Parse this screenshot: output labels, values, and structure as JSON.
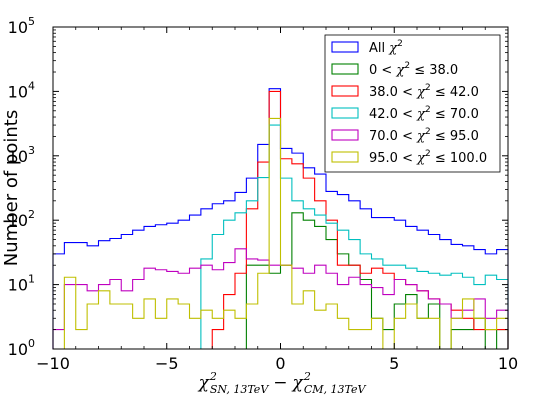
{
  "chart_data": {
    "type": "histogram",
    "ylabel": "Number of points",
    "xlabel": {
      "text1": "χ",
      "sup1": "2",
      "sub1": "SN, 13TeV",
      "minus": "−",
      "text2": "χ",
      "sup2": "2",
      "sub2": "CM, 13TeV"
    },
    "xlim": [
      -10,
      10
    ],
    "ylim": [
      1,
      100000
    ],
    "yscale": "log",
    "x_ticks": [
      "−10",
      "−5",
      "0",
      "5",
      "10"
    ],
    "x_tick_values": [
      -10,
      -5,
      0,
      5,
      10
    ],
    "y_ticks": [
      {
        "base": "10",
        "exp": "0"
      },
      {
        "base": "10",
        "exp": "1"
      },
      {
        "base": "10",
        "exp": "2"
      },
      {
        "base": "10",
        "exp": "3"
      },
      {
        "base": "10",
        "exp": "4"
      },
      {
        "base": "10",
        "exp": "5"
      }
    ],
    "legend_position": "top-right",
    "bin_width": 0.5,
    "bin_start": -10,
    "series": [
      {
        "name": "All χ²",
        "legend": {
          "pre": "All ",
          "chi": "χ",
          "sup": "2",
          "post": ""
        },
        "color": "#0000ff",
        "values": [
          30,
          45,
          45,
          40,
          48,
          52,
          60,
          70,
          80,
          85,
          90,
          100,
          120,
          150,
          180,
          200,
          270,
          450,
          1500,
          11000,
          1300,
          1100,
          650,
          520,
          280,
          250,
          200,
          150,
          110,
          110,
          100,
          80,
          70,
          60,
          50,
          42,
          40,
          35,
          30,
          35
        ]
      },
      {
        "name": "0 < χ² ≤ 38.0",
        "legend": {
          "pre": "0 < ",
          "chi": "χ",
          "sup": "2",
          "post": " ≤ 38.0"
        },
        "color": "#008000",
        "values": [
          null,
          null,
          null,
          null,
          null,
          null,
          null,
          null,
          null,
          null,
          null,
          null,
          null,
          null,
          null,
          null,
          null,
          20,
          20,
          15,
          20,
          130,
          100,
          80,
          50,
          30,
          20,
          12,
          3,
          2,
          5,
          7,
          3,
          5,
          1,
          2,
          2,
          3,
          1,
          2
        ]
      },
      {
        "name": "38.0 < χ² ≤ 42.0",
        "legend": {
          "pre": "38.0 < ",
          "chi": "χ",
          "sup": "2",
          "post": " ≤ 42.0"
        },
        "color": "#ff0000",
        "values": [
          null,
          null,
          null,
          null,
          null,
          null,
          null,
          null,
          null,
          null,
          null,
          null,
          null,
          null,
          2,
          7,
          15,
          150,
          800,
          10000,
          900,
          750,
          450,
          200,
          100,
          20,
          20,
          15,
          18,
          15,
          12,
          10,
          8,
          6,
          5,
          4,
          3,
          2,
          2,
          2
        ]
      },
      {
        "name": "42.0 < χ² ≤ 70.0",
        "legend": {
          "pre": "42.0 < ",
          "chi": "χ",
          "sup": "2",
          "post": " ≤ 70.0"
        },
        "color": "#00bfbf",
        "values": [
          null,
          null,
          null,
          null,
          null,
          null,
          null,
          null,
          null,
          null,
          null,
          null,
          null,
          25,
          60,
          100,
          130,
          200,
          460,
          3000,
          450,
          200,
          150,
          120,
          90,
          70,
          50,
          30,
          25,
          20,
          20,
          18,
          16,
          15,
          14,
          15,
          13,
          10,
          14,
          12
        ]
      },
      {
        "name": "70.0 < χ² ≤ 95.0",
        "legend": {
          "pre": "70.0 < ",
          "chi": "χ",
          "sup": "2",
          "post": " ≤ 95.0"
        },
        "color": "#bf00bf",
        "values": [
          2,
          10,
          10,
          8,
          10,
          12,
          8,
          12,
          18,
          17,
          16,
          15,
          18,
          20,
          17,
          22,
          36,
          25,
          24,
          20,
          20,
          18,
          15,
          20,
          15,
          10,
          13,
          10,
          9,
          7,
          12,
          10,
          8,
          6,
          5,
          3,
          4,
          6,
          3,
          4
        ]
      },
      {
        "name": "95.0 < χ² ≤ 100.0",
        "legend": {
          "pre": "95.0 < ",
          "chi": "χ",
          "sup": "2",
          "post": " ≤ 100.0"
        },
        "color": "#bfbf00",
        "values": [
          null,
          13,
          2,
          5,
          8,
          5,
          5,
          3,
          6,
          3,
          6,
          5,
          3,
          4,
          3,
          4,
          3,
          5,
          15,
          3800,
          20,
          5,
          8,
          4,
          5,
          3,
          2,
          2,
          3,
          1,
          3,
          5,
          3,
          3,
          1,
          3,
          6,
          3,
          2,
          3
        ]
      }
    ]
  }
}
